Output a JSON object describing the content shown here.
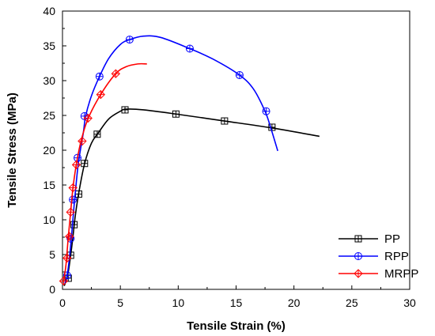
{
  "chart_data": {
    "type": "line",
    "title": "",
    "xlabel": "Tensile Strain (%)",
    "ylabel": "Tensile Stress (MPa)",
    "xlim": [
      0,
      30
    ],
    "ylim": [
      0,
      40
    ],
    "xticks": [
      0,
      5,
      10,
      15,
      20,
      25,
      30
    ],
    "yticks": [
      0,
      5,
      10,
      15,
      20,
      25,
      30,
      35,
      40
    ],
    "grid": false,
    "legend_position": "bottom-right",
    "series": [
      {
        "name": "PP",
        "color": "#000000",
        "marker": "square",
        "curve": [
          [
            0.15,
            0.5
          ],
          [
            0.3,
            1.2
          ],
          [
            0.5,
            2.5
          ],
          [
            0.7,
            4.8
          ],
          [
            0.9,
            7.5
          ],
          [
            1.1,
            10.5
          ],
          [
            1.4,
            13.8
          ],
          [
            1.9,
            18.0
          ],
          [
            2.5,
            21.0
          ],
          [
            3.1,
            22.5
          ],
          [
            4.0,
            24.5
          ],
          [
            5.0,
            25.6
          ],
          [
            5.5,
            25.9
          ],
          [
            7.0,
            25.8
          ],
          [
            9.8,
            25.2
          ],
          [
            14.0,
            24.2
          ],
          [
            18.1,
            23.2
          ],
          [
            22.2,
            22.0
          ]
        ],
        "markers": [
          [
            0.5,
            1.6
          ],
          [
            0.7,
            4.9
          ],
          [
            1.0,
            9.3
          ],
          [
            1.4,
            13.7
          ],
          [
            1.9,
            18.1
          ],
          [
            3.0,
            22.3
          ],
          [
            5.4,
            25.8
          ],
          [
            9.8,
            25.2
          ],
          [
            14.0,
            24.2
          ],
          [
            18.1,
            23.3
          ]
        ]
      },
      {
        "name": "RPP",
        "color": "#0000ff",
        "marker": "circle",
        "curve": [
          [
            0.2,
            0.8
          ],
          [
            0.4,
            2.0
          ],
          [
            0.6,
            4.5
          ],
          [
            0.8,
            8.0
          ],
          [
            1.0,
            12.0
          ],
          [
            1.2,
            15.5
          ],
          [
            1.4,
            18.5
          ],
          [
            1.8,
            22.5
          ],
          [
            2.0,
            24.9
          ],
          [
            2.5,
            27.8
          ],
          [
            3.2,
            30.6
          ],
          [
            4.0,
            33.2
          ],
          [
            5.0,
            35.2
          ],
          [
            5.8,
            35.9
          ],
          [
            7.0,
            36.4
          ],
          [
            8.5,
            36.2
          ],
          [
            11.0,
            34.6
          ],
          [
            13.0,
            33.1
          ],
          [
            15.3,
            30.8
          ],
          [
            16.5,
            28.8
          ],
          [
            17.5,
            25.6
          ],
          [
            18.0,
            23.2
          ],
          [
            18.6,
            19.9
          ]
        ],
        "markers": [
          [
            0.4,
            2.0
          ],
          [
            0.7,
            7.3
          ],
          [
            0.9,
            12.9
          ],
          [
            1.3,
            18.9
          ],
          [
            1.9,
            24.9
          ],
          [
            3.2,
            30.6
          ],
          [
            5.8,
            35.9
          ],
          [
            11.0,
            34.6
          ],
          [
            15.3,
            30.8
          ],
          [
            17.6,
            25.6
          ]
        ]
      },
      {
        "name": "MRPP",
        "color": "#ff0000",
        "marker": "diamond",
        "curve": [
          [
            0.1,
            1.2
          ],
          [
            0.3,
            3.5
          ],
          [
            0.5,
            7.5
          ],
          [
            0.7,
            11.0
          ],
          [
            0.9,
            14.5
          ],
          [
            1.2,
            18.0
          ],
          [
            1.6,
            21.3
          ],
          [
            2.2,
            24.5
          ],
          [
            3.3,
            28.0
          ],
          [
            4.6,
            31.0
          ],
          [
            5.5,
            32.0
          ],
          [
            6.5,
            32.4
          ],
          [
            7.3,
            32.4
          ]
        ],
        "markers": [
          [
            0.1,
            1.2
          ],
          [
            0.4,
            4.5
          ],
          [
            0.6,
            7.6
          ],
          [
            0.7,
            11.1
          ],
          [
            0.9,
            14.6
          ],
          [
            1.2,
            17.9
          ],
          [
            1.7,
            21.3
          ],
          [
            2.2,
            24.6
          ],
          [
            3.3,
            28.0
          ],
          [
            4.6,
            31.0
          ]
        ]
      }
    ]
  }
}
